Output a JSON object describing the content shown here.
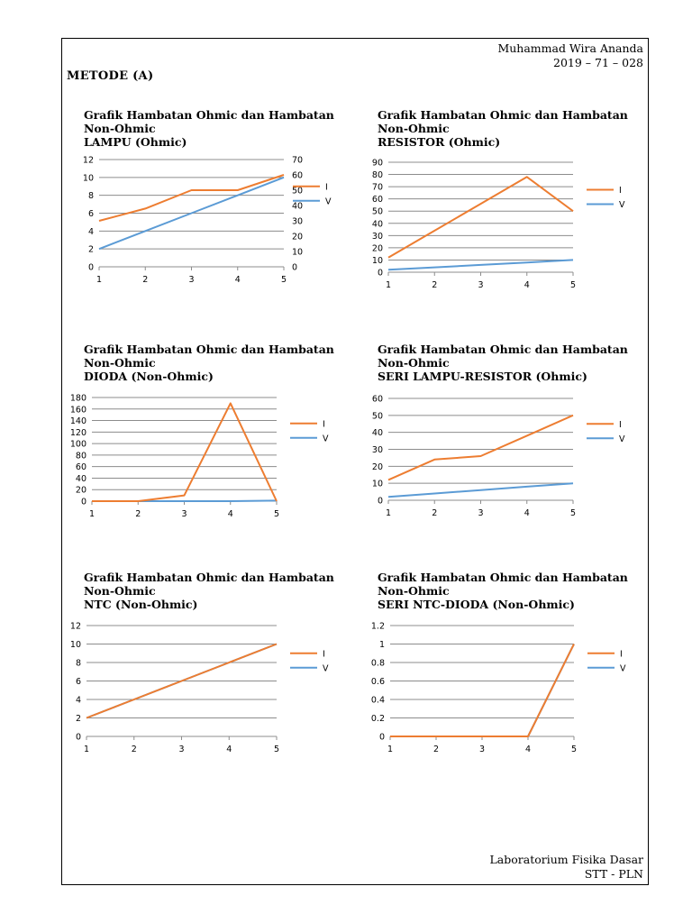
{
  "header": {
    "author": "Muhammad Wira Ananda",
    "student_id": "2019 – 71 – 028"
  },
  "section_title": "METODE  (A)",
  "footer": {
    "lab": "Laboratorium Fisika Dasar",
    "institution": "STT - PLN"
  },
  "colors": {
    "I": "#ED7D31",
    "V": "#5B9BD5",
    "grid": "#8c8c8c"
  },
  "chart_data": [
    {
      "type": "line",
      "title_line1": "Grafik Hambatan Ohmic dan Hambatan",
      "title_line2": "Non-Ohmic",
      "title_line3": "LAMPU (Ohmic)",
      "x": [
        1,
        2,
        3,
        4,
        5
      ],
      "ylim": [
        0,
        12
      ],
      "yticks": [
        "0",
        "2",
        "4",
        "6",
        "8",
        "10",
        "12"
      ],
      "y2lim": [
        0,
        70
      ],
      "y2ticks": [
        "0",
        "10",
        "20",
        "30",
        "40",
        "50",
        "60",
        "70"
      ],
      "series": [
        {
          "name": "I",
          "axis": "right",
          "values": [
            30,
            38,
            50,
            50,
            60
          ]
        },
        {
          "name": "V",
          "axis": "left",
          "values": [
            2,
            4,
            6,
            8,
            10
          ]
        }
      ],
      "legend": "right"
    },
    {
      "type": "line",
      "title_line1": "Grafik Hambatan Ohmic dan Hambatan",
      "title_line2": "Non-Ohmic",
      "title_line3": "RESISTOR (Ohmic)",
      "x": [
        1,
        2,
        3,
        4,
        5
      ],
      "ylim": [
        0,
        90
      ],
      "yticks": [
        "0",
        "10",
        "20",
        "30",
        "40",
        "50",
        "60",
        "70",
        "80",
        "90"
      ],
      "series": [
        {
          "name": "I",
          "values": [
            12,
            34,
            56,
            78,
            50
          ]
        },
        {
          "name": "V",
          "values": [
            2,
            4,
            6,
            8,
            10
          ]
        }
      ],
      "legend": "right"
    },
    {
      "type": "line",
      "title_line1": "Grafik Hambatan Ohmic dan Hambatan",
      "title_line2": "Non-Ohmic",
      "title_line3": "DIODA (Non-Ohmic)",
      "x": [
        1,
        2,
        3,
        4,
        5
      ],
      "ylim": [
        0,
        180
      ],
      "yticks": [
        "0",
        "20",
        "40",
        "60",
        "80",
        "100",
        "120",
        "140",
        "160",
        "180"
      ],
      "series": [
        {
          "name": "I",
          "values": [
            0,
            0,
            10,
            170,
            0
          ]
        },
        {
          "name": "V",
          "values": [
            0,
            0,
            0,
            0,
            1
          ]
        }
      ],
      "legend_labels": [
        "I",
        "V"
      ],
      "legend": "right"
    },
    {
      "type": "line",
      "title_line1": "Grafik Hambatan Ohmic dan Hambatan",
      "title_line2": "Non-Ohmic",
      "title_line3": "SERI LAMPU-RESISTOR (Ohmic)",
      "x": [
        1,
        2,
        3,
        4,
        5
      ],
      "ylim": [
        0,
        60
      ],
      "yticks": [
        "0",
        "10",
        "20",
        "30",
        "40",
        "50",
        "60"
      ],
      "series": [
        {
          "name": "I",
          "values": [
            12,
            24,
            26,
            38,
            50
          ]
        },
        {
          "name": "V",
          "values": [
            2,
            4,
            6,
            8,
            10
          ]
        }
      ],
      "legend": "right"
    },
    {
      "type": "line",
      "title_line1": "Grafik Hambatan Ohmic dan Hambatan",
      "title_line2": "Non-Ohmic",
      "title_line3": "NTC (Non-Ohmic)",
      "x": [
        1,
        2,
        3,
        4,
        5
      ],
      "ylim": [
        0,
        12
      ],
      "yticks": [
        "0",
        "2",
        "4",
        "6",
        "8",
        "10",
        "12"
      ],
      "series": [
        {
          "name": "I",
          "values": [
            2,
            4,
            6,
            8,
            10
          ]
        },
        {
          "name": "V",
          "values": [
            2,
            4,
            6,
            8,
            10
          ]
        }
      ],
      "legend": "right"
    },
    {
      "type": "line",
      "title_line1": "Grafik Hambatan Ohmic dan Hambatan",
      "title_line2": "Non-Ohmic",
      "title_line3": "SERI NTC-DIODA (Non-Ohmic)",
      "x": [
        1,
        2,
        3,
        4,
        5
      ],
      "ylim": [
        0,
        1.2
      ],
      "yticks": [
        "0",
        "0.2",
        "0.4",
        "0.6",
        "0.8",
        "1",
        "1.2"
      ],
      "series": [
        {
          "name": "I",
          "values": [
            0,
            0,
            0,
            0,
            1
          ]
        },
        {
          "name": "V",
          "values": [
            0,
            0,
            0,
            0,
            1
          ]
        }
      ],
      "legend": "right"
    }
  ]
}
